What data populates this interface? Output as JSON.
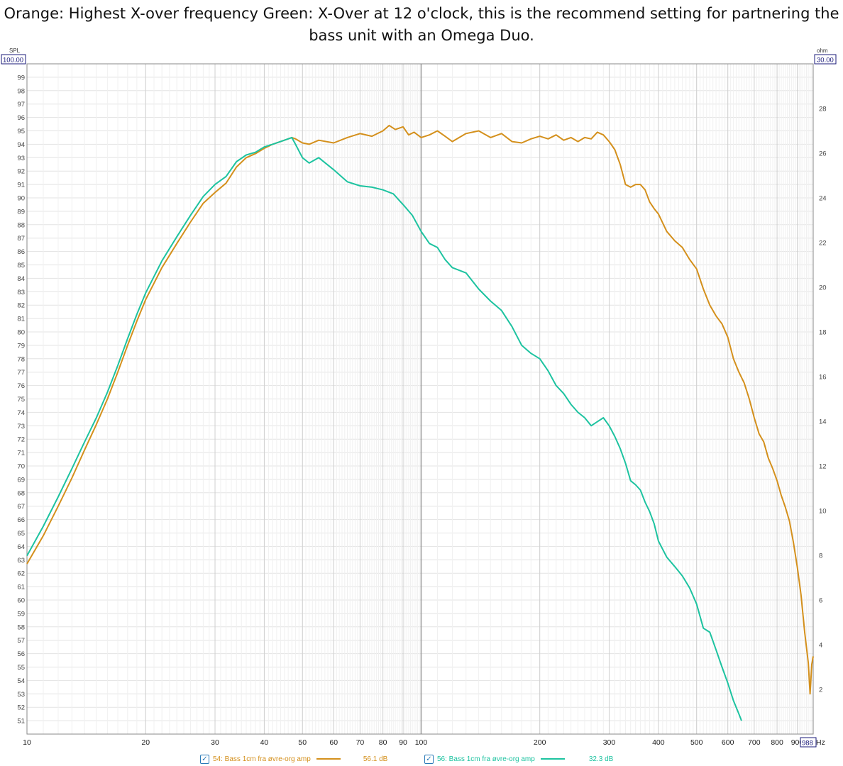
{
  "caption": "Orange: Highest X-over frequency Green: X-Over at 12 o'clock, this is the recommend setting for partnering the bass unit with an Omega Duo.",
  "chart_data": {
    "type": "line",
    "x_scale": "log",
    "xlim": [
      10,
      988
    ],
    "ylim": [
      50,
      100
    ],
    "y2lim": [
      0,
      30
    ],
    "ylabel": "SPL",
    "y2label": "ohm",
    "xunit": "Hz",
    "ylim_box": "100.00",
    "y2lim_box": "30.00",
    "xmax_box": "988",
    "x_ticks": [
      10,
      20,
      30,
      40,
      50,
      60,
      70,
      80,
      90,
      100,
      200,
      300,
      400,
      500,
      600,
      700,
      800,
      900
    ],
    "x_tick_labels": [
      "10",
      "20",
      "30",
      "40",
      "50",
      "60",
      "70",
      "80",
      "90",
      "100",
      "200",
      "300",
      "400",
      "500",
      "600",
      "700",
      "800",
      "900"
    ],
    "y_ticks": [
      51,
      52,
      53,
      54,
      55,
      56,
      57,
      58,
      59,
      60,
      61,
      62,
      63,
      64,
      65,
      66,
      67,
      68,
      69,
      70,
      71,
      72,
      73,
      74,
      75,
      76,
      77,
      78,
      79,
      80,
      81,
      82,
      83,
      84,
      85,
      86,
      87,
      88,
      89,
      90,
      91,
      92,
      93,
      94,
      95,
      96,
      97,
      98,
      99
    ],
    "y2_ticks": [
      2,
      4,
      6,
      8,
      10,
      12,
      14,
      16,
      18,
      20,
      22,
      24,
      26,
      28
    ],
    "grid": true,
    "series": [
      {
        "name": "54: Bass 1cm fra øvre-org amp",
        "color": "#d4901c",
        "level": "56.1 dB",
        "points": [
          [
            10,
            62.7
          ],
          [
            11,
            64.8
          ],
          [
            12,
            67
          ],
          [
            13,
            69.1
          ],
          [
            14,
            71.2
          ],
          [
            15,
            73.1
          ],
          [
            16,
            75
          ],
          [
            17,
            77
          ],
          [
            18,
            79
          ],
          [
            19,
            80.8
          ],
          [
            20,
            82.4
          ],
          [
            22,
            84.8
          ],
          [
            24,
            86.6
          ],
          [
            26,
            88.2
          ],
          [
            28,
            89.6
          ],
          [
            30,
            90.4
          ],
          [
            32,
            91.1
          ],
          [
            34,
            92.3
          ],
          [
            36,
            93
          ],
          [
            38,
            93.3
          ],
          [
            40,
            93.7
          ],
          [
            42,
            94
          ],
          [
            44,
            94.2
          ],
          [
            46,
            94.4
          ],
          [
            47,
            94.5
          ],
          [
            48,
            94.4
          ],
          [
            50,
            94.1
          ],
          [
            52,
            94
          ],
          [
            55,
            94.3
          ],
          [
            60,
            94.1
          ],
          [
            65,
            94.5
          ],
          [
            70,
            94.8
          ],
          [
            75,
            94.6
          ],
          [
            80,
            95
          ],
          [
            83,
            95.4
          ],
          [
            86,
            95.1
          ],
          [
            90,
            95.3
          ],
          [
            93,
            94.7
          ],
          [
            96,
            94.9
          ],
          [
            100,
            94.5
          ],
          [
            105,
            94.7
          ],
          [
            110,
            95
          ],
          [
            115,
            94.6
          ],
          [
            120,
            94.2
          ],
          [
            130,
            94.8
          ],
          [
            140,
            95
          ],
          [
            150,
            94.5
          ],
          [
            160,
            94.8
          ],
          [
            170,
            94.2
          ],
          [
            180,
            94.1
          ],
          [
            190,
            94.4
          ],
          [
            200,
            94.6
          ],
          [
            210,
            94.4
          ],
          [
            220,
            94.7
          ],
          [
            230,
            94.3
          ],
          [
            240,
            94.5
          ],
          [
            250,
            94.2
          ],
          [
            260,
            94.5
          ],
          [
            270,
            94.4
          ],
          [
            280,
            94.9
          ],
          [
            290,
            94.7
          ],
          [
            300,
            94.2
          ],
          [
            310,
            93.6
          ],
          [
            320,
            92.5
          ],
          [
            330,
            91
          ],
          [
            340,
            90.8
          ],
          [
            350,
            91
          ],
          [
            360,
            91
          ],
          [
            370,
            90.6
          ],
          [
            380,
            89.7
          ],
          [
            390,
            89.2
          ],
          [
            400,
            88.8
          ],
          [
            420,
            87.5
          ],
          [
            440,
            86.8
          ],
          [
            460,
            86.3
          ],
          [
            480,
            85.4
          ],
          [
            500,
            84.7
          ],
          [
            520,
            83.2
          ],
          [
            540,
            82
          ],
          [
            560,
            81.2
          ],
          [
            580,
            80.6
          ],
          [
            600,
            79.6
          ],
          [
            620,
            78
          ],
          [
            640,
            77
          ],
          [
            660,
            76.2
          ],
          [
            680,
            75
          ],
          [
            700,
            73.6
          ],
          [
            720,
            72.4
          ],
          [
            740,
            71.8
          ],
          [
            760,
            70.6
          ],
          [
            780,
            69.8
          ],
          [
            800,
            68.9
          ],
          [
            820,
            67.8
          ],
          [
            840,
            66.9
          ],
          [
            860,
            65.9
          ],
          [
            880,
            64.3
          ],
          [
            900,
            62.5
          ],
          [
            920,
            60.4
          ],
          [
            940,
            57.6
          ],
          [
            960,
            55.3
          ],
          [
            970,
            53
          ],
          [
            980,
            55.2
          ],
          [
            988,
            55.8
          ]
        ]
      },
      {
        "name": "56: Bass 1cm fra øvre-org amp",
        "color": "#1dc3a0",
        "level": "32.3 dB",
        "points": [
          [
            10,
            63.3
          ],
          [
            11,
            65.5
          ],
          [
            12,
            67.7
          ],
          [
            13,
            69.8
          ],
          [
            14,
            71.8
          ],
          [
            15,
            73.6
          ],
          [
            16,
            75.5
          ],
          [
            17,
            77.5
          ],
          [
            18,
            79.5
          ],
          [
            19,
            81.3
          ],
          [
            20,
            82.9
          ],
          [
            22,
            85.3
          ],
          [
            24,
            87.1
          ],
          [
            26,
            88.7
          ],
          [
            28,
            90.1
          ],
          [
            30,
            91
          ],
          [
            32,
            91.6
          ],
          [
            34,
            92.7
          ],
          [
            36,
            93.2
          ],
          [
            38,
            93.4
          ],
          [
            40,
            93.8
          ],
          [
            42,
            94
          ],
          [
            44,
            94.2
          ],
          [
            46,
            94.4
          ],
          [
            47,
            94.5
          ],
          [
            48,
            94
          ],
          [
            50,
            93
          ],
          [
            52,
            92.6
          ],
          [
            55,
            93
          ],
          [
            60,
            92.1
          ],
          [
            65,
            91.2
          ],
          [
            70,
            90.9
          ],
          [
            75,
            90.8
          ],
          [
            80,
            90.6
          ],
          [
            85,
            90.3
          ],
          [
            90,
            89.5
          ],
          [
            95,
            88.7
          ],
          [
            100,
            87.5
          ],
          [
            105,
            86.6
          ],
          [
            110,
            86.3
          ],
          [
            115,
            85.4
          ],
          [
            120,
            84.8
          ],
          [
            130,
            84.4
          ],
          [
            140,
            83.2
          ],
          [
            150,
            82.3
          ],
          [
            160,
            81.6
          ],
          [
            170,
            80.4
          ],
          [
            180,
            79
          ],
          [
            190,
            78.4
          ],
          [
            200,
            78
          ],
          [
            210,
            77.1
          ],
          [
            220,
            76
          ],
          [
            230,
            75.4
          ],
          [
            240,
            74.6
          ],
          [
            250,
            74
          ],
          [
            260,
            73.6
          ],
          [
            270,
            73
          ],
          [
            280,
            73.3
          ],
          [
            290,
            73.6
          ],
          [
            300,
            73
          ],
          [
            310,
            72.2
          ],
          [
            320,
            71.3
          ],
          [
            330,
            70.2
          ],
          [
            340,
            68.9
          ],
          [
            350,
            68.6
          ],
          [
            360,
            68.2
          ],
          [
            370,
            67.3
          ],
          [
            380,
            66.6
          ],
          [
            390,
            65.7
          ],
          [
            400,
            64.4
          ],
          [
            420,
            63.2
          ],
          [
            440,
            62.5
          ],
          [
            460,
            61.8
          ],
          [
            480,
            60.9
          ],
          [
            500,
            59.7
          ],
          [
            520,
            57.9
          ],
          [
            540,
            57.6
          ],
          [
            560,
            56.3
          ],
          [
            580,
            55
          ],
          [
            600,
            53.8
          ],
          [
            620,
            52.5
          ],
          [
            640,
            51.5
          ],
          [
            650,
            51
          ]
        ]
      }
    ]
  }
}
